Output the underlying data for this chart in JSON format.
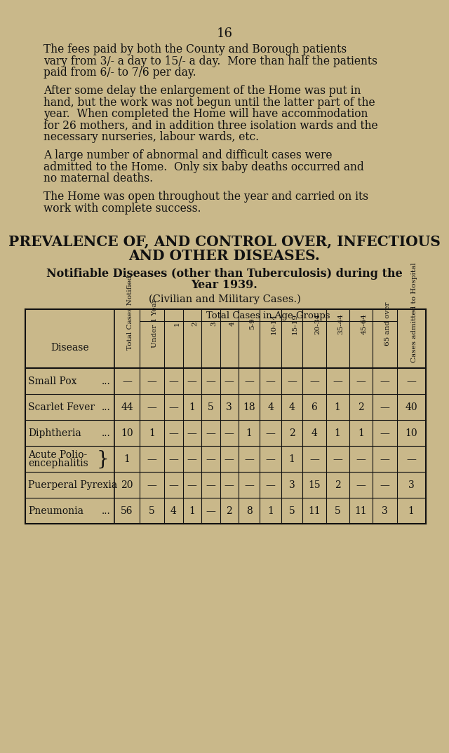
{
  "bg_color": "#c9b88a",
  "page_number": "16",
  "p1_lines": [
    "The fees paid by both the County and Borough patients",
    "vary from 3/- a day to 15/- a day.  More than half the patients",
    "paid from 6/- to 7/6 per day."
  ],
  "p2_lines": [
    "After some delay the enlargement of the Home was put in",
    "hand, but the work was not begun until the latter part of the",
    "year.  When completed the Home will have accommodation",
    "for 26 mothers, and in addition three isolation wards and the",
    "necessary nurseries, labour wards, etc."
  ],
  "p3_lines": [
    "A large number of abnormal and difficult cases were",
    "admitted to the Home.  Only six baby deaths occurred and",
    "no maternal deaths."
  ],
  "p4_lines": [
    "The Home was open throughout the year and carried on its",
    "work with complete success."
  ],
  "section_title1": "PREVALENCE OF, AND CONTROL OVER, INFECTIOUS",
  "section_title2": "AND OTHER DISEASES.",
  "subtitle1": "Notifiable Diseases (other than Tuberculosis) during the",
  "subtitle2": "Year 1939.",
  "subtitle3": "(Civilian and Military Cases.)",
  "col_header_main": "Total Cases in Age Groups",
  "col_headers": [
    "Total Cases Notified",
    "Under 1 Year",
    "1",
    "2",
    "3",
    "4",
    "5-9",
    "10-14",
    "15-19",
    "20-34",
    "35-44",
    "45-64",
    "65 and over",
    "Cases admitted to Hospital"
  ],
  "diseases": [
    {
      "name": "Small Pox",
      "dots": "...",
      "two_line": false
    },
    {
      "name": "Scarlet Fever",
      "dots": "...",
      "two_line": false
    },
    {
      "name": "Diphtheria",
      "dots": "...",
      "two_line": false
    },
    {
      "name1": "Acute Polio-",
      "name2": "encephalitis",
      "dots": "",
      "two_line": true
    },
    {
      "name": "Puerperal Pyrexia",
      "dots": "",
      "two_line": false
    },
    {
      "name": "Pneumonia",
      "dots": "...",
      "two_line": false
    }
  ],
  "data": [
    [
      "—",
      "—",
      "—",
      "—",
      "—",
      "—",
      "—",
      "—",
      "—",
      "—",
      "—",
      "—",
      "—",
      "—"
    ],
    [
      "44",
      "—",
      "—",
      "1",
      "5",
      "3",
      "18",
      "4",
      "4",
      "6",
      "1",
      "2",
      "—",
      "40"
    ],
    [
      "10",
      "1",
      "—",
      "—",
      "—",
      "—",
      "1",
      "—",
      "2",
      "4",
      "1",
      "1",
      "—",
      "10"
    ],
    [
      "1",
      "—",
      "—",
      "—",
      "—",
      "—",
      "—",
      "—",
      "1",
      "—",
      "—",
      "—",
      "—",
      "—"
    ],
    [
      "20",
      "—",
      "—",
      "—",
      "—",
      "—",
      "—",
      "—",
      "3",
      "15",
      "2",
      "—",
      "—",
      "3"
    ],
    [
      "56",
      "5",
      "4",
      "1",
      "—",
      "2",
      "8",
      "1",
      "5",
      "11",
      "5",
      "11",
      "3",
      "1"
    ]
  ],
  "text_color": "#111111",
  "line_color": "#111111"
}
